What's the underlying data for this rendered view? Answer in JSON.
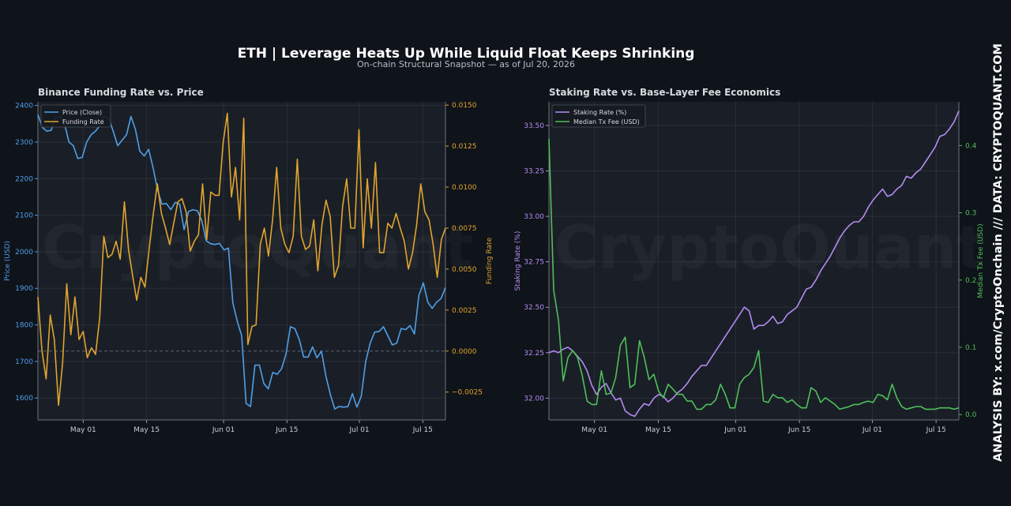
{
  "title": "ETH | Leverage Heats Up While Liquid Float Keeps Shrinking",
  "subtitle": "On-chain Structural Snapshot — as of Jul 20, 2026",
  "side_text": "ANALYSIS BY: x.com/CryptoOnchain   ///   DATA: CRYPTOQUANT.COM",
  "watermark": "CryptoQuant",
  "colors": {
    "background": "#0f131a",
    "panel": "#1a1f27",
    "price": "#4f9fe8",
    "funding": "#e0a42e",
    "staking": "#b48cf0",
    "fee": "#4fbf5a"
  },
  "chart_data": [
    {
      "type": "line",
      "title": "Binance Funding Rate vs. Price",
      "x_start": "2026-04-21",
      "x_end": "2026-07-20",
      "x_ticks": [
        "May 01",
        "May 15",
        "Jun 01",
        "Jun 15",
        "Jul 01",
        "Jul 15"
      ],
      "x_tick_dates": [
        "2026-05-01",
        "2026-05-15",
        "2026-06-01",
        "2026-06-15",
        "2026-07-01",
        "2026-07-15"
      ],
      "grid": true,
      "legend_position": "top-left",
      "y_left": {
        "label": "Price (USD)",
        "range": [
          1540,
          2410
        ],
        "ticks": [
          1600,
          1700,
          1800,
          1900,
          2000,
          2100,
          2200,
          2300,
          2400
        ]
      },
      "y_right": {
        "label": "Funding Rate",
        "range": [
          -0.0042,
          0.0152
        ],
        "ticks": [
          -0.0025,
          0.0,
          0.0025,
          0.005,
          0.0075,
          0.01,
          0.0125,
          0.015
        ],
        "tick_labels": [
          "−0.0025",
          "0.0000",
          "0.0025",
          "0.0050",
          "0.0075",
          "0.0100",
          "0.0125",
          "0.0150"
        ]
      },
      "zero_line": 0.0,
      "series": [
        {
          "name": "Price (Close)",
          "axis": "left",
          "values": [
            2375,
            2340,
            2330,
            2332,
            2365,
            2370,
            2350,
            2300,
            2290,
            2255,
            2258,
            2300,
            2320,
            2330,
            2345,
            2370,
            2365,
            2330,
            2290,
            2305,
            2320,
            2370,
            2335,
            2275,
            2262,
            2280,
            2230,
            2170,
            2130,
            2132,
            2115,
            2135,
            2130,
            2060,
            2110,
            2115,
            2112,
            2085,
            2030,
            2022,
            2020,
            2023,
            2005,
            2010,
            1860,
            1810,
            1770,
            1585,
            1577,
            1690,
            1690,
            1640,
            1625,
            1670,
            1665,
            1680,
            1720,
            1795,
            1790,
            1760,
            1712,
            1712,
            1740,
            1710,
            1728,
            1660,
            1610,
            1570,
            1577,
            1575,
            1577,
            1612,
            1575,
            1605,
            1700,
            1750,
            1780,
            1782,
            1795,
            1770,
            1745,
            1750,
            1790,
            1787,
            1798,
            1775,
            1880,
            1915,
            1862,
            1845,
            1862,
            1872,
            1902
          ]
        },
        {
          "name": "Funding Rate",
          "axis": "right",
          "values": [
            0.0033,
            0.0,
            -0.0017,
            0.0022,
            0.0007,
            -0.0033,
            -0.0007,
            0.0041,
            0.001,
            0.0033,
            0.0007,
            0.0012,
            -0.0004,
            0.0002,
            -0.0002,
            0.002,
            0.007,
            0.0057,
            0.0059,
            0.0067,
            0.0056,
            0.0091,
            0.0062,
            0.0046,
            0.0031,
            0.0045,
            0.0039,
            0.0062,
            0.0083,
            0.0102,
            0.0084,
            0.0075,
            0.0065,
            0.0078,
            0.0091,
            0.0093,
            0.0085,
            0.0061,
            0.0067,
            0.0071,
            0.0102,
            0.0068,
            0.0097,
            0.0095,
            0.0095,
            0.0127,
            0.0145,
            0.0094,
            0.0112,
            0.008,
            0.0142,
            0.0004,
            0.0015,
            0.0016,
            0.0065,
            0.0075,
            0.0058,
            0.008,
            0.0112,
            0.0075,
            0.0065,
            0.006,
            0.007,
            0.0117,
            0.007,
            0.0062,
            0.0064,
            0.008,
            0.0049,
            0.0077,
            0.0092,
            0.0082,
            0.0045,
            0.0052,
            0.0088,
            0.0105,
            0.0075,
            0.0075,
            0.0135,
            0.0063,
            0.0105,
            0.0075,
            0.0115,
            0.006,
            0.006,
            0.0078,
            0.0075,
            0.0084,
            0.0075,
            0.0067,
            0.005,
            0.006,
            0.0077,
            0.0102,
            0.0085,
            0.008,
            0.0065,
            0.0045,
            0.0068,
            0.0075
          ]
        }
      ]
    },
    {
      "type": "line",
      "title": "Staking Rate vs. Base-Layer Fee Economics",
      "x_start": "2026-04-21",
      "x_end": "2026-07-20",
      "x_ticks": [
        "May 01",
        "May 15",
        "Jun 01",
        "Jun 15",
        "Jul 01",
        "Jul 15"
      ],
      "x_tick_dates": [
        "2026-05-01",
        "2026-05-15",
        "2026-06-01",
        "2026-06-15",
        "2026-07-01",
        "2026-07-15"
      ],
      "grid": true,
      "legend_position": "top-left",
      "y_left": {
        "label": "Staking Rate (%)",
        "range": [
          31.88,
          33.63
        ],
        "ticks": [
          32.0,
          32.25,
          32.5,
          32.75,
          33.0,
          33.25,
          33.5
        ],
        "tick_labels": [
          "32.00",
          "32.25",
          "32.50",
          "32.75",
          "33.00",
          "33.25",
          "33.50"
        ]
      },
      "y_right": {
        "label": "Median Tx Fee (USD)",
        "range": [
          -0.008,
          0.465
        ],
        "ticks": [
          0.0,
          0.1,
          0.2,
          0.3,
          0.4
        ],
        "tick_labels": [
          "0.0",
          "0.1",
          "0.2",
          "0.3",
          "0.4"
        ]
      },
      "series": [
        {
          "name": "Staking Rate (%)",
          "axis": "left",
          "values": [
            32.25,
            32.26,
            32.25,
            32.27,
            32.28,
            32.26,
            32.23,
            32.2,
            32.15,
            32.07,
            32.02,
            32.06,
            32.08,
            32.03,
            31.99,
            32.0,
            31.93,
            31.91,
            31.9,
            31.94,
            31.97,
            31.96,
            32.0,
            32.02,
            32.01,
            31.98,
            32.0,
            32.03,
            32.05,
            32.08,
            32.12,
            32.15,
            32.18,
            32.18,
            32.22,
            32.26,
            32.3,
            32.34,
            32.38,
            32.42,
            32.46,
            32.5,
            32.48,
            32.38,
            32.4,
            32.4,
            32.42,
            32.45,
            32.41,
            32.42,
            32.46,
            32.48,
            32.5,
            32.55,
            32.6,
            32.61,
            32.65,
            32.7,
            32.74,
            32.78,
            32.83,
            32.88,
            32.92,
            32.95,
            32.97,
            32.97,
            33.0,
            33.05,
            33.09,
            33.12,
            33.15,
            33.11,
            33.12,
            33.15,
            33.17,
            33.22,
            33.21,
            33.24,
            33.26,
            33.3,
            33.34,
            33.38,
            33.44,
            33.45,
            33.48,
            33.52,
            33.58
          ]
        },
        {
          "name": "Median Tx Fee (USD)",
          "axis": "right",
          "values": [
            0.41,
            0.185,
            0.14,
            0.05,
            0.085,
            0.095,
            0.085,
            0.058,
            0.02,
            0.015,
            0.015,
            0.065,
            0.03,
            0.032,
            0.055,
            0.103,
            0.115,
            0.04,
            0.045,
            0.11,
            0.085,
            0.052,
            0.06,
            0.035,
            0.025,
            0.045,
            0.038,
            0.03,
            0.03,
            0.02,
            0.02,
            0.008,
            0.008,
            0.015,
            0.015,
            0.022,
            0.045,
            0.03,
            0.01,
            0.01,
            0.045,
            0.055,
            0.06,
            0.07,
            0.095,
            0.02,
            0.018,
            0.03,
            0.025,
            0.025,
            0.018,
            0.022,
            0.015,
            0.01,
            0.01,
            0.04,
            0.035,
            0.018,
            0.025,
            0.02,
            0.015,
            0.008,
            0.01,
            0.012,
            0.015,
            0.015,
            0.018,
            0.02,
            0.018,
            0.03,
            0.028,
            0.022,
            0.045,
            0.025,
            0.012,
            0.008,
            0.01,
            0.012,
            0.012,
            0.008,
            0.008,
            0.008,
            0.01,
            0.01,
            0.01,
            0.008,
            0.01
          ]
        }
      ]
    }
  ]
}
